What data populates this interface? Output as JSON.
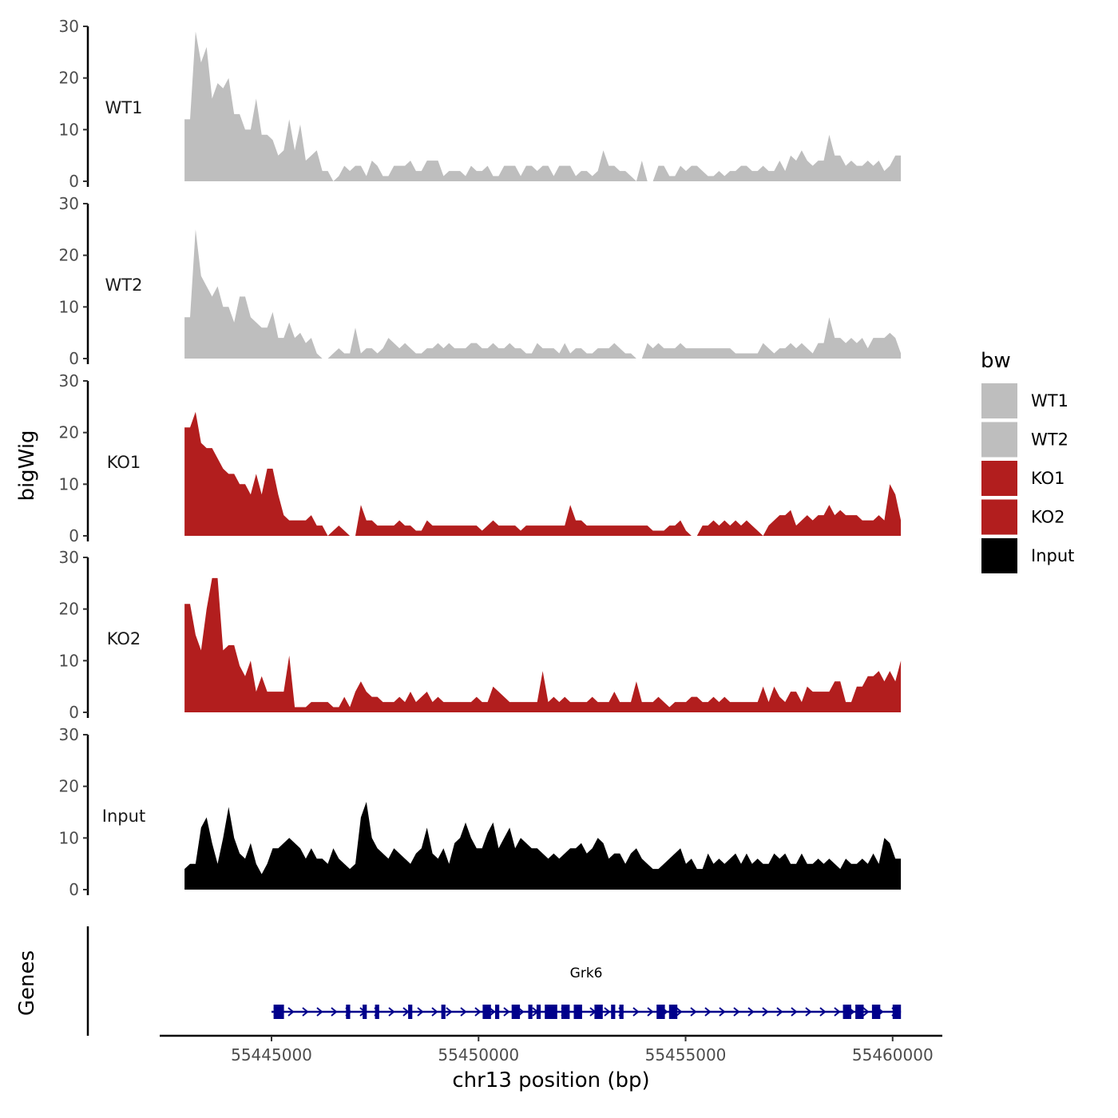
{
  "chart_data": {
    "type": "area",
    "chromosome": "chr13",
    "ylabel": "bigWig",
    "xlabel": "chr13 position (bp)",
    "genes_label": "Genes",
    "xlim": [
      55442300,
      55461200
    ],
    "ylim": [
      0,
      30
    ],
    "yticks": [
      0,
      10,
      20,
      30
    ],
    "xticks": [
      55445000,
      55450000,
      55455000,
      55460000
    ],
    "xtick_labels": [
      "55445000",
      "55450000",
      "55455000",
      "55460000"
    ],
    "legend": {
      "title": "bw",
      "position": "right",
      "entries": [
        {
          "label": "WT1",
          "color": "#bebebe"
        },
        {
          "label": "WT2",
          "color": "#bebebe"
        },
        {
          "label": "KO1",
          "color": "#b21e1e"
        },
        {
          "label": "KO2",
          "color": "#b21e1e"
        },
        {
          "label": "Input",
          "color": "#000000"
        }
      ]
    },
    "series_range": [
      55442900,
      55460200
    ],
    "series": [
      {
        "name": "WT1",
        "color": "#bebebe",
        "values": [
          12,
          12,
          29,
          23,
          26,
          16,
          19,
          18,
          20,
          13,
          13,
          10,
          10,
          16,
          9,
          9,
          8,
          5,
          6,
          12,
          6,
          11,
          4,
          5,
          6,
          2,
          2,
          0,
          1,
          3,
          2,
          3,
          3,
          1,
          4,
          3,
          1,
          1,
          3,
          3,
          3,
          4,
          2,
          2,
          4,
          4,
          4,
          1,
          2,
          2,
          2,
          1,
          3,
          2,
          2,
          3,
          1,
          1,
          3,
          3,
          3,
          1,
          3,
          3,
          2,
          3,
          3,
          1,
          3,
          3,
          3,
          1,
          2,
          2,
          1,
          2,
          6,
          3,
          3,
          2,
          2,
          1,
          0,
          4,
          0,
          0,
          3,
          3,
          1,
          1,
          3,
          2,
          3,
          3,
          2,
          1,
          1,
          2,
          1,
          2,
          2,
          3,
          3,
          2,
          2,
          3,
          2,
          2,
          4,
          2,
          5,
          4,
          6,
          4,
          3,
          4,
          4,
          9,
          5,
          5,
          3,
          4,
          3,
          3,
          4,
          3,
          4,
          2,
          3,
          5,
          5
        ]
      },
      {
        "name": "WT2",
        "color": "#bebebe",
        "values": [
          8,
          8,
          25,
          16,
          14,
          12,
          14,
          10,
          10,
          7,
          12,
          12,
          8,
          7,
          6,
          6,
          9,
          4,
          4,
          7,
          4,
          5,
          3,
          4,
          1,
          0,
          0,
          1,
          2,
          1,
          1,
          6,
          1,
          2,
          2,
          1,
          2,
          4,
          3,
          2,
          3,
          2,
          1,
          1,
          2,
          2,
          3,
          2,
          3,
          2,
          2,
          2,
          3,
          3,
          2,
          2,
          3,
          2,
          2,
          3,
          2,
          2,
          1,
          1,
          3,
          2,
          2,
          2,
          1,
          3,
          1,
          2,
          2,
          1,
          1,
          2,
          2,
          2,
          3,
          2,
          1,
          1,
          0,
          0,
          3,
          2,
          3,
          2,
          2,
          2,
          3,
          2,
          2,
          2,
          2,
          2,
          2,
          2,
          2,
          2,
          1,
          1,
          1,
          1,
          1,
          3,
          2,
          1,
          2,
          2,
          3,
          2,
          3,
          2,
          1,
          3,
          3,
          8,
          4,
          4,
          3,
          4,
          3,
          4,
          2,
          4,
          4,
          4,
          5,
          4,
          1
        ]
      },
      {
        "name": "KO1",
        "color": "#b21e1e",
        "values": [
          21,
          21,
          24,
          18,
          17,
          17,
          15,
          13,
          12,
          12,
          10,
          10,
          8,
          12,
          8,
          13,
          13,
          8,
          4,
          3,
          3,
          3,
          3,
          4,
          2,
          2,
          0,
          1,
          2,
          1,
          0,
          0,
          6,
          3,
          3,
          2,
          2,
          2,
          2,
          3,
          2,
          2,
          1,
          1,
          3,
          2,
          2,
          2,
          2,
          2,
          2,
          2,
          2,
          2,
          1,
          2,
          3,
          2,
          2,
          2,
          2,
          1,
          2,
          2,
          2,
          2,
          2,
          2,
          2,
          2,
          6,
          3,
          3,
          2,
          2,
          2,
          2,
          2,
          2,
          2,
          2,
          2,
          2,
          2,
          2,
          1,
          1,
          1,
          2,
          2,
          3,
          1,
          0,
          0,
          2,
          2,
          3,
          2,
          3,
          2,
          3,
          2,
          3,
          2,
          1,
          0,
          2,
          3,
          4,
          4,
          5,
          2,
          3,
          4,
          3,
          4,
          4,
          6,
          4,
          5,
          4,
          4,
          4,
          3,
          3,
          3,
          4,
          3,
          10,
          8,
          3
        ]
      },
      {
        "name": "KO2",
        "color": "#b21e1e",
        "values": [
          21,
          21,
          15,
          12,
          20,
          26,
          26,
          12,
          13,
          13,
          9,
          7,
          10,
          4,
          7,
          4,
          4,
          4,
          4,
          11,
          1,
          1,
          1,
          2,
          2,
          2,
          2,
          1,
          1,
          3,
          1,
          4,
          6,
          4,
          3,
          3,
          2,
          2,
          2,
          3,
          2,
          4,
          2,
          3,
          4,
          2,
          3,
          2,
          2,
          2,
          2,
          2,
          2,
          3,
          2,
          2,
          5,
          4,
          3,
          2,
          2,
          2,
          2,
          2,
          2,
          8,
          2,
          3,
          2,
          3,
          2,
          2,
          2,
          2,
          3,
          2,
          2,
          2,
          4,
          2,
          2,
          2,
          6,
          2,
          2,
          2,
          3,
          2,
          1,
          2,
          2,
          2,
          3,
          3,
          2,
          2,
          3,
          2,
          3,
          2,
          2,
          2,
          2,
          2,
          2,
          5,
          2,
          5,
          3,
          2,
          4,
          4,
          2,
          5,
          4,
          4,
          4,
          4,
          6,
          6,
          2,
          2,
          5,
          5,
          7,
          7,
          8,
          6,
          8,
          6,
          10
        ]
      },
      {
        "name": "Input",
        "color": "#000000",
        "values": [
          4,
          5,
          5,
          12,
          14,
          9,
          5,
          10,
          16,
          10,
          7,
          6,
          9,
          5,
          3,
          5,
          8,
          8,
          9,
          10,
          9,
          8,
          6,
          8,
          6,
          6,
          5,
          8,
          6,
          5,
          4,
          5,
          14,
          17,
          10,
          8,
          7,
          6,
          8,
          7,
          6,
          5,
          7,
          8,
          12,
          7,
          6,
          8,
          5,
          9,
          10,
          13,
          10,
          8,
          8,
          11,
          13,
          8,
          10,
          12,
          8,
          10,
          9,
          8,
          8,
          7,
          6,
          7,
          6,
          7,
          8,
          8,
          9,
          7,
          8,
          10,
          9,
          6,
          7,
          7,
          5,
          7,
          8,
          6,
          5,
          4,
          4,
          5,
          6,
          7,
          8,
          5,
          6,
          4,
          4,
          7,
          5,
          6,
          5,
          6,
          7,
          5,
          7,
          5,
          6,
          5,
          5,
          7,
          6,
          7,
          5,
          5,
          7,
          5,
          5,
          6,
          5,
          6,
          5,
          4,
          6,
          5,
          5,
          6,
          5,
          7,
          5,
          10,
          9,
          6,
          6
        ]
      }
    ],
    "gene": {
      "name": "Grk6",
      "start": 55445000,
      "end": 55460200,
      "strand": "+",
      "color": "#00008b",
      "exons": [
        [
          55445050,
          55445300
        ],
        [
          55446800,
          55446900
        ],
        [
          55447200,
          55447300
        ],
        [
          55447500,
          55447600
        ],
        [
          55448300,
          55448400
        ],
        [
          55449100,
          55449200
        ],
        [
          55450100,
          55450300
        ],
        [
          55450400,
          55450500
        ],
        [
          55450800,
          55451000
        ],
        [
          55451200,
          55451300
        ],
        [
          55451400,
          55451500
        ],
        [
          55451600,
          55451900
        ],
        [
          55452000,
          55452200
        ],
        [
          55452300,
          55452500
        ],
        [
          55452800,
          55453000
        ],
        [
          55453200,
          55453300
        ],
        [
          55453400,
          55453500
        ],
        [
          55454300,
          55454500
        ],
        [
          55454600,
          55454800
        ],
        [
          55458800,
          55459000
        ],
        [
          55459100,
          55459300
        ],
        [
          55459500,
          55459700
        ],
        [
          55460000,
          55460200
        ]
      ]
    }
  }
}
